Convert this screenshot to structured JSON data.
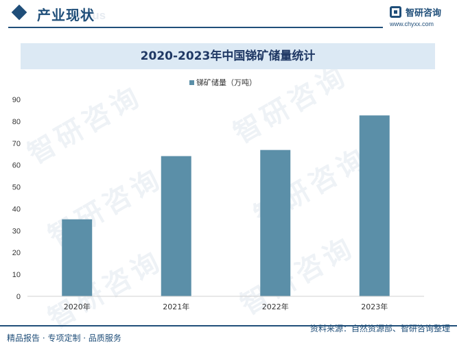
{
  "header": {
    "section_title": "产业现状",
    "section_subtitle": "status",
    "brand_name": "智研咨询",
    "brand_url": "www.chyxx.com",
    "watermark_text": "智研咨询"
  },
  "colors": {
    "primary": "#1f4e79",
    "bar": "#5b8fa8",
    "title_band": "#dce9f4"
  },
  "footer": {
    "left": "精品报告 · 专项定制 · 品质服务",
    "right": "资料来源：自然资源部、智研咨询整理"
  },
  "chart_data": {
    "type": "bar",
    "title": "2020-2023年中国锑矿储量统计",
    "categories": [
      "2020年",
      "2021年",
      "2022年",
      "2023年"
    ],
    "series": [
      {
        "name": "锑矿储量（万吨）",
        "values": [
          35.2,
          64.1,
          66.9,
          82.7
        ]
      }
    ],
    "ylim": [
      0,
      90
    ],
    "yticks": [
      0,
      10,
      20,
      30,
      40,
      50,
      60,
      70,
      80,
      90
    ],
    "grid": false,
    "legend": "top-center"
  }
}
